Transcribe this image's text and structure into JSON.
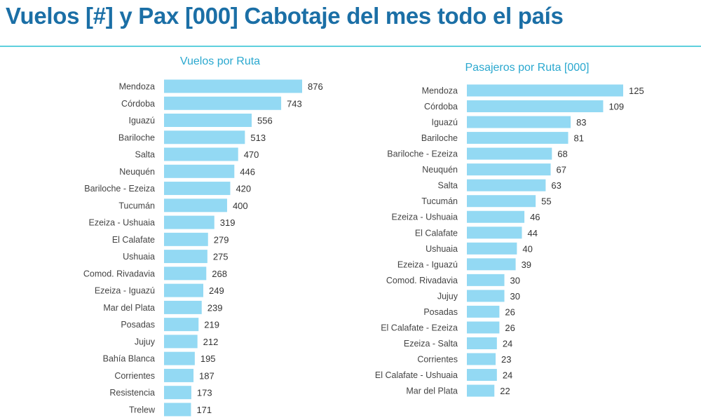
{
  "title": "Vuelos [#] y Pax [000] Cabotaje del mes todo el país",
  "colors": {
    "title": "#1b6fa6",
    "rule": "#5fd0dd",
    "bar": "#93d9f3",
    "chart_title": "#2aa8cf"
  },
  "chart_data": [
    {
      "type": "bar",
      "orientation": "horizontal",
      "title": "Vuelos por Ruta",
      "categories": [
        "Mendoza",
        "Córdoba",
        "Iguazú",
        "Bariloche",
        "Salta",
        "Neuquén",
        "Bariloche - Ezeiza",
        "Tucumán",
        "Ezeiza - Ushuaia",
        "El Calafate",
        "Ushuaia",
        "Comod. Rivadavia",
        "Ezeiza - Iguazú",
        "Mar del Plata",
        "Posadas",
        "Jujuy",
        "Bahía Blanca",
        "Corrientes",
        "Resistencia",
        "Trelew"
      ],
      "values": [
        876,
        743,
        556,
        513,
        470,
        446,
        420,
        400,
        319,
        279,
        275,
        268,
        249,
        239,
        219,
        212,
        195,
        187,
        173,
        171
      ],
      "data_labels": true,
      "grid": false
    },
    {
      "type": "bar",
      "orientation": "horizontal",
      "title": "Pasajeros por Ruta [000]",
      "categories": [
        "Mendoza",
        "Córdoba",
        "Iguazú",
        "Bariloche",
        "Bariloche - Ezeiza",
        "Neuquén",
        "Salta",
        "Tucumán",
        "Ezeiza - Ushuaia",
        "El Calafate",
        "Ushuaia",
        "Ezeiza - Iguazú",
        "Comod. Rivadavia",
        "Jujuy",
        "Posadas",
        "El Calafate - Ezeiza",
        "Ezeiza - Salta",
        "Corrientes",
        "El Calafate - Ushuaia",
        "Mar del Plata"
      ],
      "values": [
        125,
        109,
        83,
        81,
        68,
        67,
        63,
        55,
        46,
        44,
        40,
        39,
        30,
        30,
        26,
        26,
        24,
        23,
        24,
        22
      ],
      "data_labels": true,
      "grid": false
    }
  ]
}
